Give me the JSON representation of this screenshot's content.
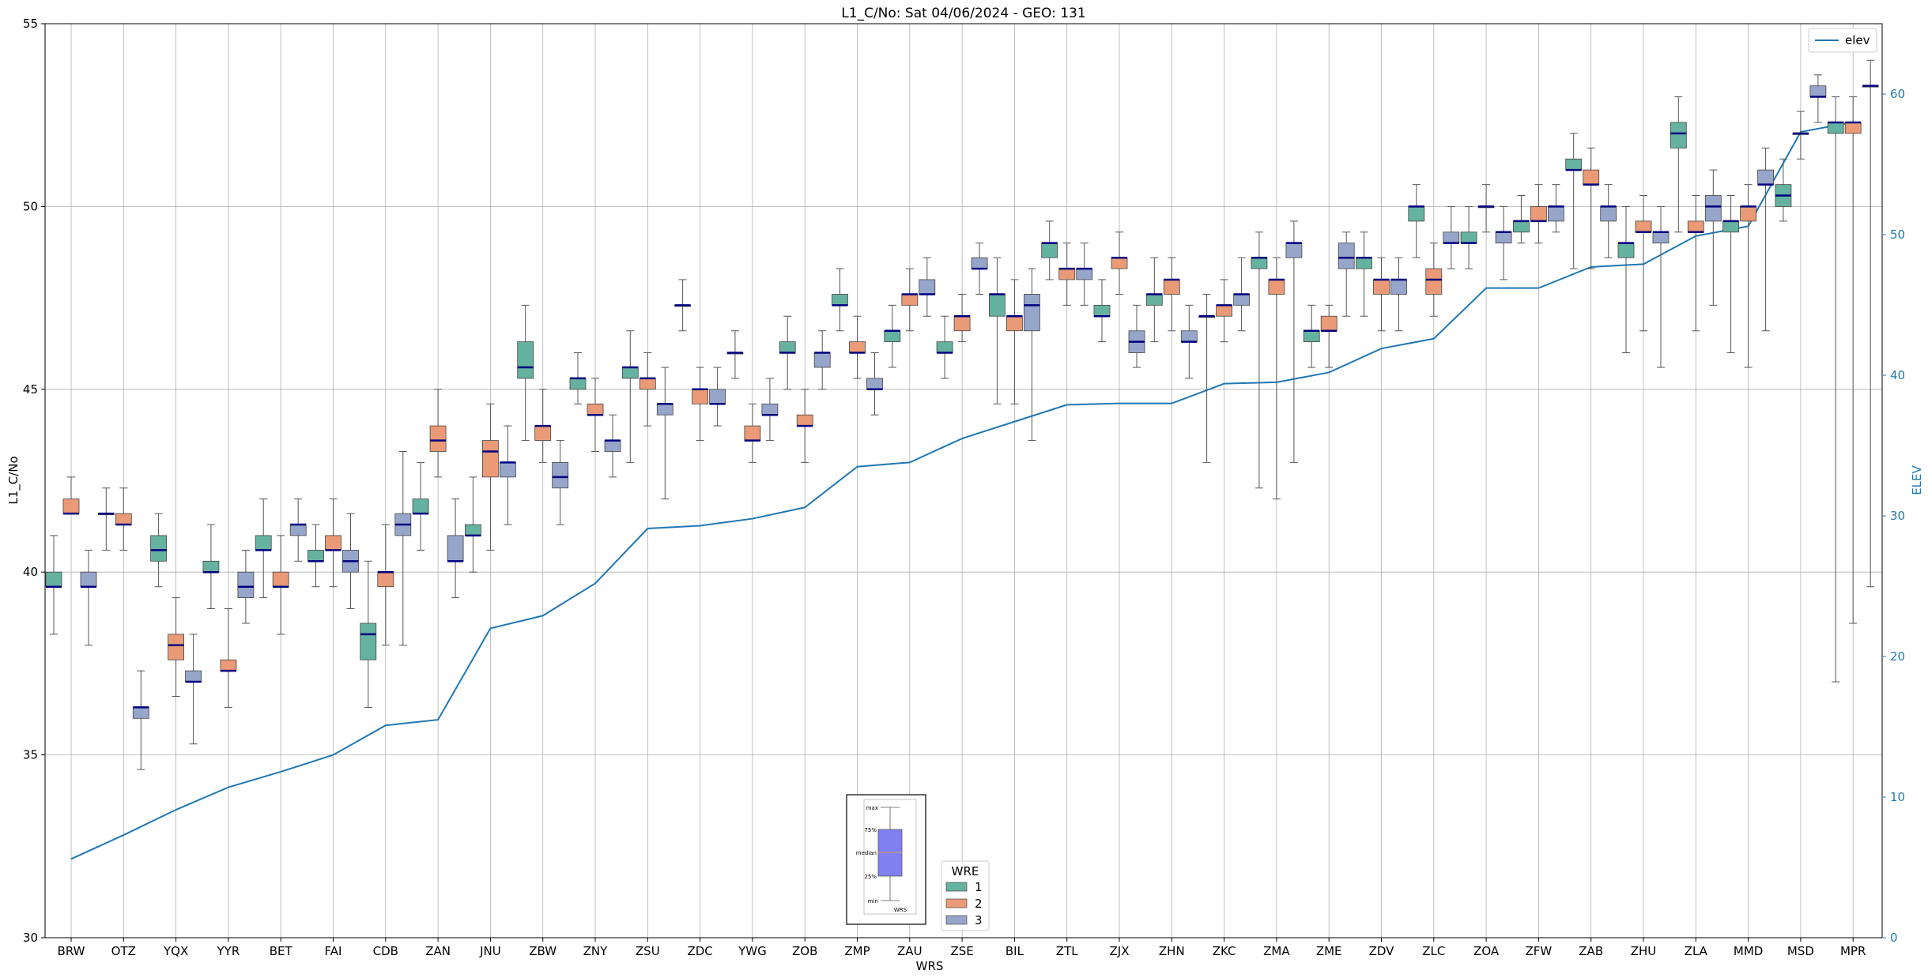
{
  "chart_data": {
    "type": "box",
    "title": "L1_C/No: Sat 04/06/2024 - GEO: 131",
    "xlabel": "WRS",
    "ylabel": "L1_C/No",
    "y2label": "ELEV",
    "ylim": [
      30,
      55
    ],
    "y2lim": [
      0,
      65
    ],
    "yticks": [
      "30",
      "35",
      "40",
      "45",
      "50",
      "55"
    ],
    "y2ticks": [
      "0",
      "10",
      "20",
      "30",
      "40",
      "50",
      "60"
    ],
    "grid": true,
    "categories": [
      "BRW",
      "OTZ",
      "YQX",
      "YYR",
      "BET",
      "FAI",
      "CDB",
      "ZAN",
      "JNU",
      "ZBW",
      "ZNY",
      "ZSU",
      "ZDC",
      "YWG",
      "ZOB",
      "ZMP",
      "ZAU",
      "ZSE",
      "BIL",
      "ZTL",
      "ZJX",
      "ZHN",
      "ZKC",
      "ZMA",
      "ZME",
      "ZDV",
      "ZLC",
      "ZOA",
      "ZFW",
      "ZAB",
      "ZHU",
      "ZLA",
      "MMD",
      "MSD",
      "MPR"
    ],
    "series_colors": {
      "1": "#66b2a0",
      "2": "#ea9a76",
      "3": "#96a5ca"
    },
    "boxes": {
      "BRW": [
        [
          38.3,
          39.6,
          39.6,
          40.0,
          41.0
        ],
        [
          41.6,
          41.6,
          41.6,
          42.0,
          42.6
        ],
        [
          38.0,
          39.6,
          39.6,
          40.0,
          40.6
        ]
      ],
      "OTZ": [
        [
          40.6,
          41.6,
          41.6,
          41.6,
          42.3
        ],
        [
          40.6,
          41.3,
          41.3,
          41.6,
          42.3
        ],
        [
          34.6,
          36.0,
          36.3,
          36.3,
          37.3
        ]
      ],
      "YQX": [
        [
          39.6,
          40.3,
          40.6,
          41.0,
          41.6
        ],
        [
          36.6,
          37.6,
          38.0,
          38.3,
          39.3
        ],
        [
          35.3,
          37.0,
          37.0,
          37.3,
          38.3
        ]
      ],
      "YYR": [
        [
          39.0,
          40.0,
          40.0,
          40.3,
          41.3
        ],
        [
          36.3,
          37.3,
          37.3,
          37.6,
          39.0
        ],
        [
          38.6,
          39.3,
          39.6,
          40.0,
          40.6
        ]
      ],
      "BET": [
        [
          39.3,
          40.6,
          40.6,
          41.0,
          42.0
        ],
        [
          38.3,
          39.6,
          39.6,
          40.0,
          41.0
        ],
        [
          40.3,
          41.0,
          41.3,
          41.3,
          42.0
        ]
      ],
      "FAI": [
        [
          39.6,
          40.3,
          40.3,
          40.6,
          41.3
        ],
        [
          39.6,
          40.6,
          40.6,
          41.0,
          42.0
        ],
        [
          39.0,
          40.0,
          40.3,
          40.6,
          41.6
        ]
      ],
      "CDB": [
        [
          36.3,
          37.6,
          38.3,
          38.6,
          40.3
        ],
        [
          38.0,
          39.6,
          40.0,
          40.0,
          41.3
        ],
        [
          38.0,
          41.0,
          41.3,
          41.6,
          43.3
        ]
      ],
      "ZAN": [
        [
          40.6,
          41.6,
          41.6,
          42.0,
          43.0
        ],
        [
          42.6,
          43.3,
          43.6,
          44.0,
          45.0
        ],
        [
          39.3,
          40.3,
          40.3,
          41.0,
          42.0
        ]
      ],
      "JNU": [
        [
          40.0,
          41.0,
          41.0,
          41.3,
          42.6
        ],
        [
          40.6,
          42.6,
          43.3,
          43.6,
          44.6
        ],
        [
          41.3,
          42.6,
          43.0,
          43.0,
          44.0
        ]
      ],
      "ZBW": [
        [
          43.6,
          45.3,
          45.6,
          46.3,
          47.3
        ],
        [
          43.0,
          43.6,
          44.0,
          44.0,
          45.0
        ],
        [
          41.3,
          42.3,
          42.6,
          43.0,
          43.6
        ]
      ],
      "ZNY": [
        [
          44.6,
          45.0,
          45.3,
          45.3,
          46.0
        ],
        [
          43.3,
          44.3,
          44.3,
          44.6,
          45.3
        ],
        [
          42.6,
          43.3,
          43.6,
          43.6,
          44.3
        ]
      ],
      "ZSU": [
        [
          43.0,
          45.3,
          45.6,
          45.6,
          46.6
        ],
        [
          44.0,
          45.0,
          45.3,
          45.3,
          46.0
        ],
        [
          42.0,
          44.3,
          44.6,
          44.6,
          45.6
        ]
      ],
      "ZDC": [
        [
          46.6,
          47.3,
          47.3,
          47.3,
          48.0
        ],
        [
          43.6,
          44.6,
          45.0,
          45.0,
          45.6
        ],
        [
          44.0,
          44.6,
          44.6,
          45.0,
          45.6
        ]
      ],
      "YWG": [
        [
          45.3,
          46.0,
          46.0,
          46.0,
          46.6
        ],
        [
          43.0,
          43.6,
          43.6,
          44.0,
          44.6
        ],
        [
          43.6,
          44.3,
          44.3,
          44.6,
          45.3
        ]
      ],
      "ZOB": [
        [
          45.0,
          46.0,
          46.0,
          46.3,
          47.0
        ],
        [
          43.0,
          44.0,
          44.0,
          44.3,
          45.0
        ],
        [
          45.0,
          45.6,
          46.0,
          46.0,
          46.6
        ]
      ],
      "ZMP": [
        [
          46.6,
          47.3,
          47.3,
          47.6,
          48.3
        ],
        [
          45.3,
          46.0,
          46.0,
          46.3,
          47.0
        ],
        [
          44.3,
          45.0,
          45.0,
          45.3,
          46.0
        ]
      ],
      "ZAU": [
        [
          45.6,
          46.3,
          46.6,
          46.6,
          47.3
        ],
        [
          46.6,
          47.3,
          47.6,
          47.6,
          48.3
        ],
        [
          47.0,
          47.6,
          47.6,
          48.0,
          48.6
        ]
      ],
      "ZSE": [
        [
          45.3,
          46.0,
          46.0,
          46.3,
          47.0
        ],
        [
          46.3,
          46.6,
          47.0,
          47.0,
          47.6
        ],
        [
          47.6,
          48.3,
          48.3,
          48.6,
          49.0
        ]
      ],
      "BIL": [
        [
          44.6,
          47.0,
          47.6,
          47.6,
          48.6
        ],
        [
          44.6,
          46.6,
          47.0,
          47.0,
          48.0
        ],
        [
          43.6,
          46.6,
          47.3,
          47.6,
          48.3
        ]
      ],
      "ZTL": [
        [
          48.0,
          48.6,
          49.0,
          49.0,
          49.6
        ],
        [
          47.3,
          48.0,
          48.3,
          48.3,
          49.0
        ],
        [
          47.3,
          48.0,
          48.3,
          48.3,
          49.0
        ]
      ],
      "ZJX": [
        [
          46.3,
          47.0,
          47.0,
          47.3,
          48.0
        ],
        [
          47.6,
          48.3,
          48.6,
          48.6,
          49.3
        ],
        [
          45.6,
          46.0,
          46.3,
          46.6,
          47.3
        ]
      ],
      "ZHN": [
        [
          46.3,
          47.3,
          47.6,
          47.6,
          48.6
        ],
        [
          46.6,
          47.6,
          48.0,
          48.0,
          48.6
        ],
        [
          45.3,
          46.3,
          46.3,
          46.6,
          47.3
        ]
      ],
      "ZKC": [
        [
          43.0,
          47.0,
          47.0,
          47.0,
          47.6
        ],
        [
          46.3,
          47.0,
          47.3,
          47.3,
          48.0
        ],
        [
          46.6,
          47.3,
          47.6,
          47.6,
          48.6
        ]
      ],
      "ZMA": [
        [
          42.3,
          48.3,
          48.6,
          48.6,
          49.3
        ],
        [
          42.0,
          47.6,
          48.0,
          48.0,
          48.6
        ],
        [
          43.0,
          48.6,
          49.0,
          49.0,
          49.6
        ]
      ],
      "ZME": [
        [
          45.6,
          46.3,
          46.6,
          46.6,
          47.3
        ],
        [
          45.6,
          46.6,
          46.6,
          47.0,
          47.3
        ],
        [
          47.0,
          48.3,
          48.6,
          49.0,
          49.3
        ]
      ],
      "ZDV": [
        [
          47.0,
          48.3,
          48.6,
          48.6,
          49.3
        ],
        [
          46.6,
          47.6,
          48.0,
          48.0,
          48.6
        ],
        [
          46.6,
          47.6,
          48.0,
          48.0,
          48.6
        ]
      ],
      "ZLC": [
        [
          48.6,
          49.6,
          50.0,
          50.0,
          50.6
        ],
        [
          47.0,
          47.6,
          48.0,
          48.3,
          49.0
        ],
        [
          48.3,
          49.0,
          49.0,
          49.3,
          50.0
        ]
      ],
      "ZOA": [
        [
          48.3,
          49.0,
          49.0,
          49.3,
          50.0
        ],
        [
          49.3,
          50.0,
          50.0,
          50.0,
          50.6
        ],
        [
          48.0,
          49.0,
          49.3,
          49.3,
          50.0
        ]
      ],
      "ZFW": [
        [
          49.0,
          49.3,
          49.6,
          49.6,
          50.3
        ],
        [
          49.0,
          49.6,
          49.6,
          50.0,
          50.6
        ],
        [
          49.3,
          49.6,
          50.0,
          50.0,
          50.6
        ]
      ],
      "ZAB": [
        [
          48.3,
          51.0,
          51.0,
          51.3,
          52.0
        ],
        [
          48.3,
          50.6,
          50.6,
          51.0,
          51.6
        ],
        [
          48.6,
          49.6,
          50.0,
          50.0,
          50.6
        ]
      ],
      "ZHU": [
        [
          46.0,
          48.6,
          49.0,
          49.0,
          50.0
        ],
        [
          46.6,
          49.3,
          49.3,
          49.6,
          50.3
        ],
        [
          45.6,
          49.0,
          49.3,
          49.3,
          50.0
        ]
      ],
      "ZLA": [
        [
          49.3,
          51.6,
          52.0,
          52.3,
          53.0
        ],
        [
          46.6,
          49.3,
          49.3,
          49.6,
          50.3
        ],
        [
          47.3,
          49.6,
          50.0,
          50.3,
          51.0
        ]
      ],
      "MMD": [
        [
          46.0,
          49.3,
          49.6,
          49.6,
          50.3
        ],
        [
          45.6,
          49.6,
          50.0,
          50.0,
          50.6
        ],
        [
          46.6,
          50.6,
          50.6,
          51.0,
          51.6
        ]
      ],
      "MSD": [
        [
          49.6,
          50.0,
          50.3,
          50.6,
          51.3
        ],
        [
          51.3,
          52.0,
          52.0,
          52.0,
          52.6
        ],
        [
          52.3,
          53.0,
          53.0,
          53.3,
          53.6
        ]
      ],
      "MPR": [
        [
          37.0,
          52.0,
          52.3,
          52.3,
          53.0
        ],
        [
          38.6,
          52.0,
          52.3,
          52.3,
          53.0
        ],
        [
          39.6,
          53.3,
          53.3,
          53.3,
          54.0
        ]
      ]
    },
    "elev": [
      5.6,
      7.3,
      9.1,
      10.7,
      11.8,
      13.0,
      15.1,
      15.5,
      22.0,
      22.9,
      25.2,
      29.1,
      29.3,
      29.8,
      30.6,
      33.5,
      33.8,
      35.5,
      36.7,
      37.9,
      38.0,
      38.0,
      39.4,
      39.5,
      40.2,
      41.9,
      42.6,
      46.2,
      46.2,
      47.7,
      47.9,
      49.9,
      50.6,
      57.3,
      58.0
    ],
    "main_legend": {
      "label": "elev",
      "placement": "upper right"
    },
    "wre_legend": {
      "title": "WRE",
      "entries": [
        "1",
        "2",
        "3"
      ],
      "placement": "lower center"
    },
    "inset_legend": {
      "labels": [
        "max",
        "75%",
        "median",
        "25%",
        "min"
      ],
      "xlabel": "WRS",
      "box_color": "#8080f0"
    }
  }
}
